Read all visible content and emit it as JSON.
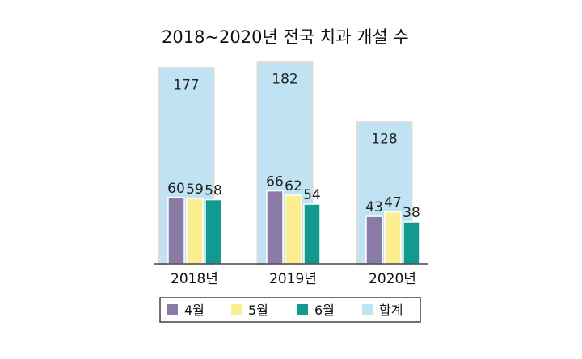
{
  "chart_data": {
    "type": "bar",
    "title": "2018~2020년 전국 치과 개설 수",
    "categories": [
      "2018년",
      "2019년",
      "2020년"
    ],
    "total": {
      "name": "합계",
      "values": [
        177,
        182,
        128
      ],
      "color": "#bfe3f2"
    },
    "series": [
      {
        "name": "4월",
        "values": [
          60,
          66,
          43
        ],
        "color": "#8a7aa6"
      },
      {
        "name": "5월",
        "values": [
          59,
          62,
          47
        ],
        "color": "#fbee91"
      },
      {
        "name": "6월",
        "values": [
          58,
          54,
          38
        ],
        "color": "#139a90"
      }
    ],
    "ylim": [
      0,
      200
    ],
    "grid": false,
    "legend": "bottom"
  }
}
